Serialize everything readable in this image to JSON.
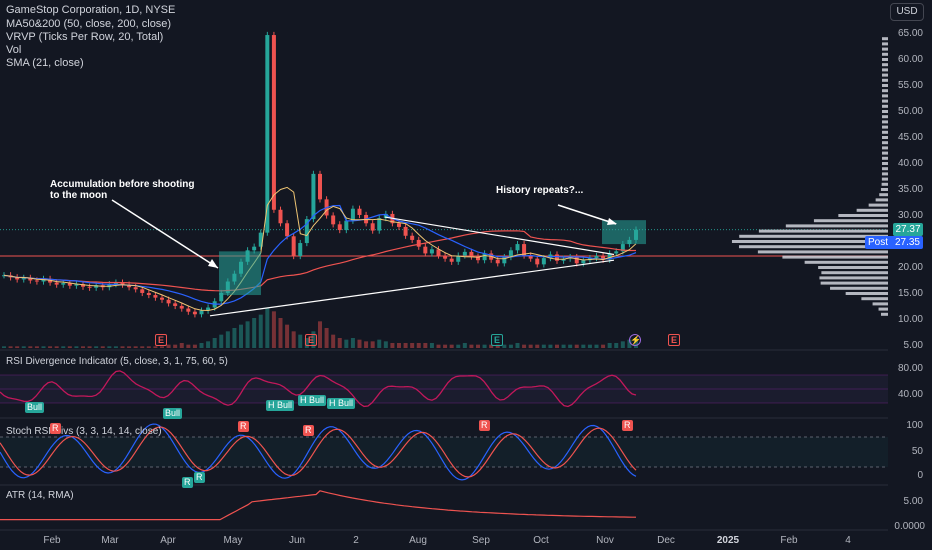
{
  "legend": {
    "symbol": "GameStop Corporation, 1D, NYSE",
    "ma": "MA50&200 (50, close, 200, close)",
    "vrvp": "VRVP (Ticks Per Row, 20, Total)",
    "vol": "Vol",
    "sma": "SMA (21, close)"
  },
  "currency_button": "USD",
  "price_axis": [
    "65.00",
    "60.00",
    "55.00",
    "50.00",
    "45.00",
    "40.00",
    "35.00",
    "30.00",
    "25.00",
    "20.00",
    "15.00",
    "10.00",
    "5.00"
  ],
  "current_price": "27.37",
  "post_label": "Post",
  "post_price": "27.35",
  "annotations": {
    "left": [
      "Accumulation before shooting",
      "to the moon"
    ],
    "right": "History repeats?..."
  },
  "rsi_pane": {
    "title": "RSI Divergence Indicator (5, close, 3, 1, 75, 60, 5)",
    "axis": [
      "80.00",
      "40.00"
    ],
    "badges": [
      "Bull",
      "Bull",
      "H Bull",
      "H Bull",
      "H Bull"
    ]
  },
  "stoch_pane": {
    "title": "Stoch RSI Divs (3, 3, 14, 14, close)",
    "axis": [
      "100",
      "50",
      "0"
    ],
    "bear_badges": [
      "R",
      "R",
      "R",
      "R",
      "R"
    ],
    "bull_badges": [
      "R",
      "R"
    ]
  },
  "atr_pane": {
    "title": "ATR (14, RMA)",
    "axis": [
      "5.00",
      "0.0000"
    ]
  },
  "time_axis": [
    "Feb",
    "Mar",
    "Apr",
    "May",
    "Jun",
    "2",
    "Aug",
    "Sep",
    "Oct",
    "Nov",
    "Dec",
    "2025",
    "Feb",
    "4"
  ],
  "events": {
    "earnings": [
      "E",
      "E",
      "E"
    ],
    "dividend": "E",
    "split": "⚡"
  },
  "colors": {
    "background": "#131722",
    "up": "#26a69a",
    "down": "#ef5350",
    "ma50": "#2962ff",
    "ma200": "#ef5350",
    "sma": "#f0c674",
    "rsi": "#c2185b",
    "stoch_k": "#2962ff",
    "stoch_d": "#ef5350",
    "accent": "#2962ff"
  },
  "chart_data": {
    "type": "candlestick",
    "price_range": [
      5,
      65
    ],
    "closes": [
      18.6,
      18.2,
      17.8,
      18.1,
      17.6,
      17.4,
      17.9,
      17.2,
      16.8,
      17.1,
      16.6,
      16.9,
      16.4,
      16.2,
      16.7,
      16.3,
      16.9,
      17.2,
      16.8,
      16.3,
      15.9,
      15.2,
      14.8,
      14.3,
      13.9,
      13.2,
      12.7,
      12.2,
      11.6,
      11.1,
      11.8,
      12.4,
      13.6,
      15.2,
      17.4,
      18.9,
      21.2,
      23.4,
      24.1,
      26.8,
      64.8,
      31.2,
      28.6,
      26.1,
      22.3,
      24.8,
      29.4,
      38.1,
      33.2,
      30.1,
      28.4,
      27.3,
      29.1,
      31.4,
      30.2,
      28.6,
      27.2,
      29.6,
      30.4,
      28.6,
      27.9,
      26.2,
      25.4,
      24.1,
      22.8,
      23.6,
      22.4,
      21.8,
      21.2,
      22.4,
      23.1,
      22.2,
      21.5,
      22.8,
      21.6,
      20.9,
      22.1,
      23.4,
      24.6,
      22.4,
      21.8,
      20.7,
      21.9,
      22.6,
      21.4,
      21.8,
      22.1,
      20.9,
      21.5,
      21.9,
      22.3,
      21.6,
      22.8,
      23.2,
      24.6,
      25.4,
      27.37
    ],
    "volume": [
      1,
      1,
      1,
      1,
      1,
      1,
      1,
      1,
      1,
      1,
      1,
      1,
      1,
      1,
      1,
      1,
      1,
      1,
      1,
      1,
      1,
      1,
      1,
      1,
      1,
      2,
      2,
      3,
      2,
      2,
      3,
      4,
      6,
      8,
      10,
      12,
      14,
      16,
      18,
      20,
      24,
      22,
      18,
      14,
      10,
      8,
      6,
      10,
      16,
      12,
      8,
      6,
      5,
      6,
      5,
      4,
      4,
      5,
      4,
      3,
      3,
      3,
      3,
      3,
      3,
      3,
      2,
      2,
      2,
      2,
      3,
      2,
      2,
      2,
      2,
      2,
      2,
      2,
      3,
      2,
      2,
      2,
      2,
      2,
      2,
      2,
      2,
      2,
      2,
      2,
      2,
      2,
      3,
      3,
      4,
      5,
      6
    ]
  }
}
